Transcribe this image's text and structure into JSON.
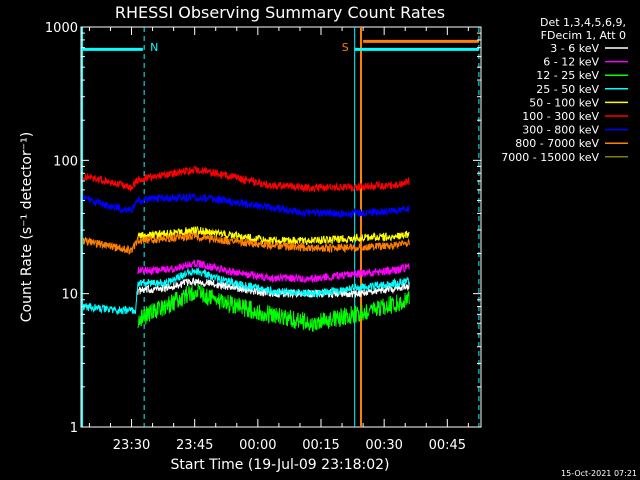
{
  "chart_data": {
    "type": "line",
    "title": "RHESSI Observing Summary Count Rates",
    "xlabel": "Start Time (19-Jul-09 23:18:02)",
    "ylabel": "Count Rate (s⁻¹ detector⁻¹)",
    "yscale": "log",
    "ylim": [
      1,
      1000
    ],
    "xlim_minutes": [
      0,
      95
    ],
    "x_ticks": [
      {
        "label": "23:30",
        "t": 12
      },
      {
        "label": "23:45",
        "t": 27
      },
      {
        "label": "00:00",
        "t": 42
      },
      {
        "label": "00:15",
        "t": 57
      },
      {
        "label": "00:30",
        "t": 72
      },
      {
        "label": "00:45",
        "t": 87
      }
    ],
    "y_ticks": [
      {
        "label": "1",
        "v": 1
      },
      {
        "label": "10",
        "v": 10
      },
      {
        "label": "100",
        "v": 100
      },
      {
        "label": "1000",
        "v": 1000
      }
    ],
    "legend_header": [
      "Det 1,3,4,5,6,9,",
      "FDecim 1, Att 0"
    ],
    "series": [
      {
        "name": "3 - 6 keV",
        "color": "#ffffff",
        "t": [
          13.5,
          20,
          27,
          34,
          45,
          55,
          65,
          75,
          78
        ],
        "values": [
          10.5,
          11,
          12.5,
          11.5,
          10,
          10,
          10,
          11,
          11.5
        ]
      },
      {
        "name": "6 - 12 keV",
        "color": "#ff00ff",
        "t": [
          13.5,
          20,
          27,
          34,
          45,
          55,
          65,
          75,
          78
        ],
        "values": [
          15,
          15,
          17,
          15,
          13,
          13,
          14,
          15,
          16
        ]
      },
      {
        "name": "12 - 25 keV",
        "color": "#00ff00",
        "t": [
          13.5,
          20,
          27,
          34,
          45,
          55,
          65,
          75,
          78
        ],
        "values": [
          6.5,
          8,
          10.5,
          8.5,
          7,
          6,
          7,
          8.5,
          9
        ]
      },
      {
        "name": "25 - 50 keV",
        "color": "#00ffff",
        "t": [
          0.5,
          8,
          13,
          13.5,
          20,
          27,
          34,
          45,
          55,
          65,
          75,
          78
        ],
        "values": [
          8,
          7.5,
          7.5,
          12,
          12,
          15,
          12.5,
          10.5,
          10,
          11,
          12,
          12.5
        ]
      },
      {
        "name": "50 - 100 keV",
        "color": "#ffff00",
        "t": [
          13.5,
          20,
          27,
          34,
          45,
          55,
          65,
          75,
          78
        ],
        "values": [
          27,
          28,
          30,
          28,
          25,
          25,
          26,
          27,
          28
        ]
      },
      {
        "name": "100 - 300 keV",
        "color": "#ff0000",
        "t": [
          0.5,
          6,
          12,
          13.5,
          20,
          27,
          34,
          45,
          55,
          65,
          75,
          78
        ],
        "values": [
          76,
          70,
          62,
          72,
          78,
          85,
          78,
          65,
          62,
          63,
          65,
          70
        ]
      },
      {
        "name": "300 - 800 keV",
        "color": "#0000ff",
        "t": [
          0.5,
          6,
          12,
          13.5,
          20,
          27,
          34,
          45,
          55,
          65,
          75,
          78
        ],
        "values": [
          52,
          46,
          42,
          50,
          52,
          53,
          50,
          44,
          40,
          40,
          42,
          43
        ]
      },
      {
        "name": "800 - 7000 keV",
        "color": "#ff8000",
        "t": [
          0.5,
          6,
          12,
          13.5,
          20,
          27,
          34,
          45,
          55,
          65,
          75,
          78
        ],
        "values": [
          25,
          23,
          21,
          25,
          26,
          27,
          25,
          23,
          22,
          22,
          23,
          24
        ]
      },
      {
        "name": "7000 - 15000 keV",
        "color": "#808000",
        "t": [],
        "values": []
      }
    ],
    "annotations": [
      {
        "text": "N",
        "color": "#00ffff",
        "t": 15
      },
      {
        "text": "S",
        "color": "#ff8000",
        "t": 65
      }
    ],
    "footer": "15-Oct-2021 07:21"
  }
}
